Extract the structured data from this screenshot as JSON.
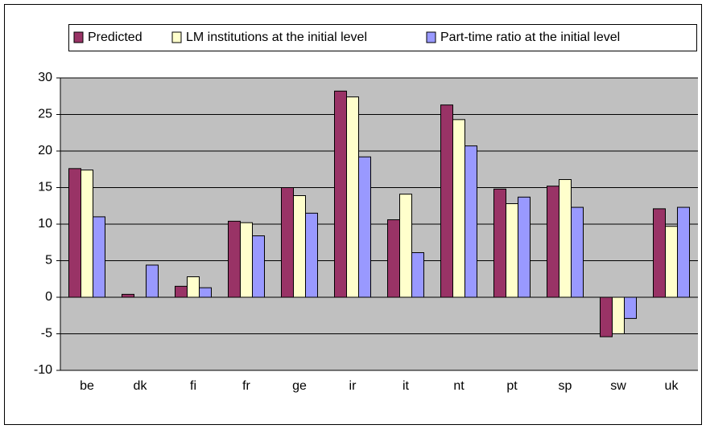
{
  "chart_data": {
    "type": "bar",
    "categories": [
      "be",
      "dk",
      "fi",
      "fr",
      "ge",
      "ir",
      "it",
      "nt",
      "pt",
      "sp",
      "sw",
      "uk"
    ],
    "series": [
      {
        "name": "Predicted",
        "color": "#993366",
        "values": [
          17.6,
          0.4,
          1.5,
          10.4,
          15.0,
          28.2,
          10.6,
          26.3,
          14.8,
          15.2,
          -5.4,
          12.1
        ]
      },
      {
        "name": "LM institutions at the initial level",
        "color": "#ffffcc",
        "values": [
          17.4,
          0,
          2.8,
          10.2,
          13.9,
          27.4,
          14.1,
          24.3,
          12.8,
          16.1,
          -5.0,
          9.7
        ]
      },
      {
        "name": "Part-time ratio at the initial level",
        "color": "#9999ff",
        "values": [
          11.0,
          4.4,
          1.3,
          8.4,
          11.5,
          19.2,
          6.1,
          20.7,
          13.7,
          12.3,
          -2.9,
          12.3
        ]
      }
    ],
    "ylim": [
      -10,
      30
    ],
    "yticks": [
      -10,
      -5,
      0,
      5,
      10,
      15,
      20,
      25,
      30
    ],
    "grid": true,
    "legend": "top"
  }
}
